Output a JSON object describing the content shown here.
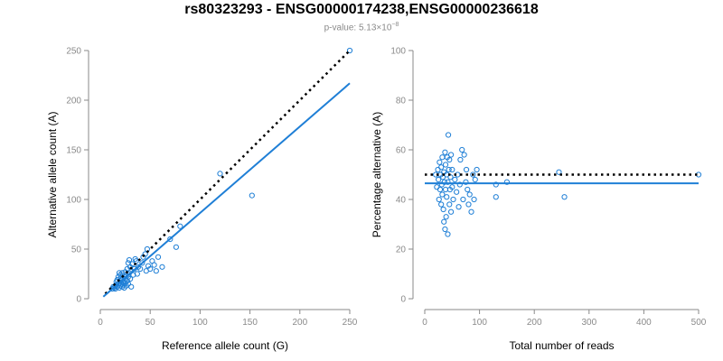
{
  "header": {
    "title": "rs80323293 - ENSG00000174238,ENSG00000236618",
    "pvalue_prefix": "p-value: 5.13×10",
    "pvalue_exponent": "−8"
  },
  "colors": {
    "points": "#1f7fd6",
    "fit": "#1f7fd6",
    "reference": "#000000",
    "axis": "#8a8a8a"
  },
  "chart_data": [
    {
      "type": "scatter",
      "title": "",
      "xlabel": "Reference allele count (G)",
      "ylabel": "Alternative allele count (A)",
      "xlim": [
        0,
        250
      ],
      "ylim": [
        0,
        250
      ],
      "xticks": [
        0,
        50,
        100,
        150,
        200,
        250
      ],
      "yticks": [
        0,
        50,
        100,
        150,
        200,
        250
      ],
      "lines": [
        {
          "kind": "reference",
          "style": "dotted",
          "from": [
            5,
            5
          ],
          "to": [
            250,
            250
          ]
        },
        {
          "kind": "fit",
          "style": "solid",
          "from": [
            3,
            2
          ],
          "to": [
            250,
            217
          ]
        }
      ],
      "points": [
        [
          12,
          10
        ],
        [
          13,
          12
        ],
        [
          14,
          11
        ],
        [
          15,
          13
        ],
        [
          15,
          10
        ],
        [
          16,
          14
        ],
        [
          16,
          17
        ],
        [
          17,
          12
        ],
        [
          17,
          19
        ],
        [
          18,
          15
        ],
        [
          18,
          22
        ],
        [
          19,
          11
        ],
        [
          19,
          26
        ],
        [
          20,
          13
        ],
        [
          20,
          18
        ],
        [
          20,
          24
        ],
        [
          21,
          15
        ],
        [
          21,
          21
        ],
        [
          22,
          12
        ],
        [
          22,
          19
        ],
        [
          22,
          26
        ],
        [
          23,
          14
        ],
        [
          23,
          17
        ],
        [
          24,
          22
        ],
        [
          24,
          11
        ],
        [
          25,
          16
        ],
        [
          25,
          20
        ],
        [
          25,
          27
        ],
        [
          26,
          13
        ],
        [
          26,
          24
        ],
        [
          27,
          18
        ],
        [
          27,
          30
        ],
        [
          28,
          15
        ],
        [
          28,
          22
        ],
        [
          28,
          36
        ],
        [
          29,
          26
        ],
        [
          29,
          39
        ],
        [
          30,
          20
        ],
        [
          30,
          32
        ],
        [
          31,
          12
        ],
        [
          31,
          28
        ],
        [
          32,
          35
        ],
        [
          33,
          24
        ],
        [
          34,
          30
        ],
        [
          35,
          40
        ],
        [
          36,
          38
        ],
        [
          37,
          25
        ],
        [
          38,
          32
        ],
        [
          40,
          30
        ],
        [
          42,
          36
        ],
        [
          43,
          42
        ],
        [
          45,
          45
        ],
        [
          46,
          28
        ],
        [
          47,
          50
        ],
        [
          48,
          33
        ],
        [
          50,
          30
        ],
        [
          52,
          38
        ],
        [
          54,
          34
        ],
        [
          56,
          28
        ],
        [
          58,
          42
        ],
        [
          62,
          32
        ],
        [
          70,
          60
        ],
        [
          76,
          52
        ],
        [
          80,
          73
        ],
        [
          120,
          126
        ],
        [
          152,
          104
        ],
        [
          250,
          250
        ]
      ]
    },
    {
      "type": "scatter",
      "title": "",
      "xlabel": "Total number of reads",
      "ylabel": "Percentage alternative (A)",
      "xlim": [
        0,
        500
      ],
      "ylim": [
        0,
        100
      ],
      "xticks": [
        0,
        100,
        200,
        300,
        400,
        500
      ],
      "yticks": [
        0,
        20,
        40,
        60,
        80,
        100
      ],
      "lines": [
        {
          "kind": "reference",
          "style": "dotted",
          "from": [
            0,
            50
          ],
          "to": [
            500,
            50
          ]
        },
        {
          "kind": "fit",
          "style": "solid",
          "from": [
            0,
            46.5
          ],
          "to": [
            500,
            46.5
          ]
        }
      ],
      "points": [
        [
          20,
          50
        ],
        [
          22,
          45
        ],
        [
          24,
          52
        ],
        [
          25,
          48
        ],
        [
          26,
          40
        ],
        [
          27,
          55
        ],
        [
          28,
          44
        ],
        [
          29,
          50
        ],
        [
          30,
          38
        ],
        [
          30,
          53
        ],
        [
          31,
          46
        ],
        [
          32,
          42
        ],
        [
          32,
          57
        ],
        [
          33,
          49
        ],
        [
          34,
          36
        ],
        [
          35,
          51
        ],
        [
          35,
          31
        ],
        [
          36,
          47
        ],
        [
          37,
          59
        ],
        [
          37,
          28
        ],
        [
          38,
          44
        ],
        [
          38,
          54
        ],
        [
          39,
          33
        ],
        [
          40,
          50
        ],
        [
          40,
          41
        ],
        [
          41,
          57
        ],
        [
          42,
          26
        ],
        [
          42,
          47
        ],
        [
          43,
          66
        ],
        [
          44,
          52
        ],
        [
          45,
          38
        ],
        [
          45,
          56
        ],
        [
          46,
          44
        ],
        [
          47,
          49
        ],
        [
          48,
          58
        ],
        [
          48,
          35
        ],
        [
          50,
          45
        ],
        [
          50,
          52
        ],
        [
          52,
          40
        ],
        [
          55,
          48
        ],
        [
          58,
          43
        ],
        [
          60,
          50
        ],
        [
          62,
          37
        ],
        [
          64,
          46
        ],
        [
          65,
          56
        ],
        [
          68,
          60
        ],
        [
          70,
          40
        ],
        [
          72,
          58
        ],
        [
          75,
          47
        ],
        [
          76,
          52
        ],
        [
          78,
          44
        ],
        [
          80,
          38
        ],
        [
          82,
          42
        ],
        [
          85,
          35
        ],
        [
          88,
          50
        ],
        [
          90,
          40
        ],
        [
          92,
          48
        ],
        [
          95,
          52
        ],
        [
          130,
          41
        ],
        [
          130,
          46
        ],
        [
          150,
          47
        ],
        [
          245,
          51
        ],
        [
          255,
          41
        ],
        [
          500,
          50
        ]
      ]
    }
  ]
}
